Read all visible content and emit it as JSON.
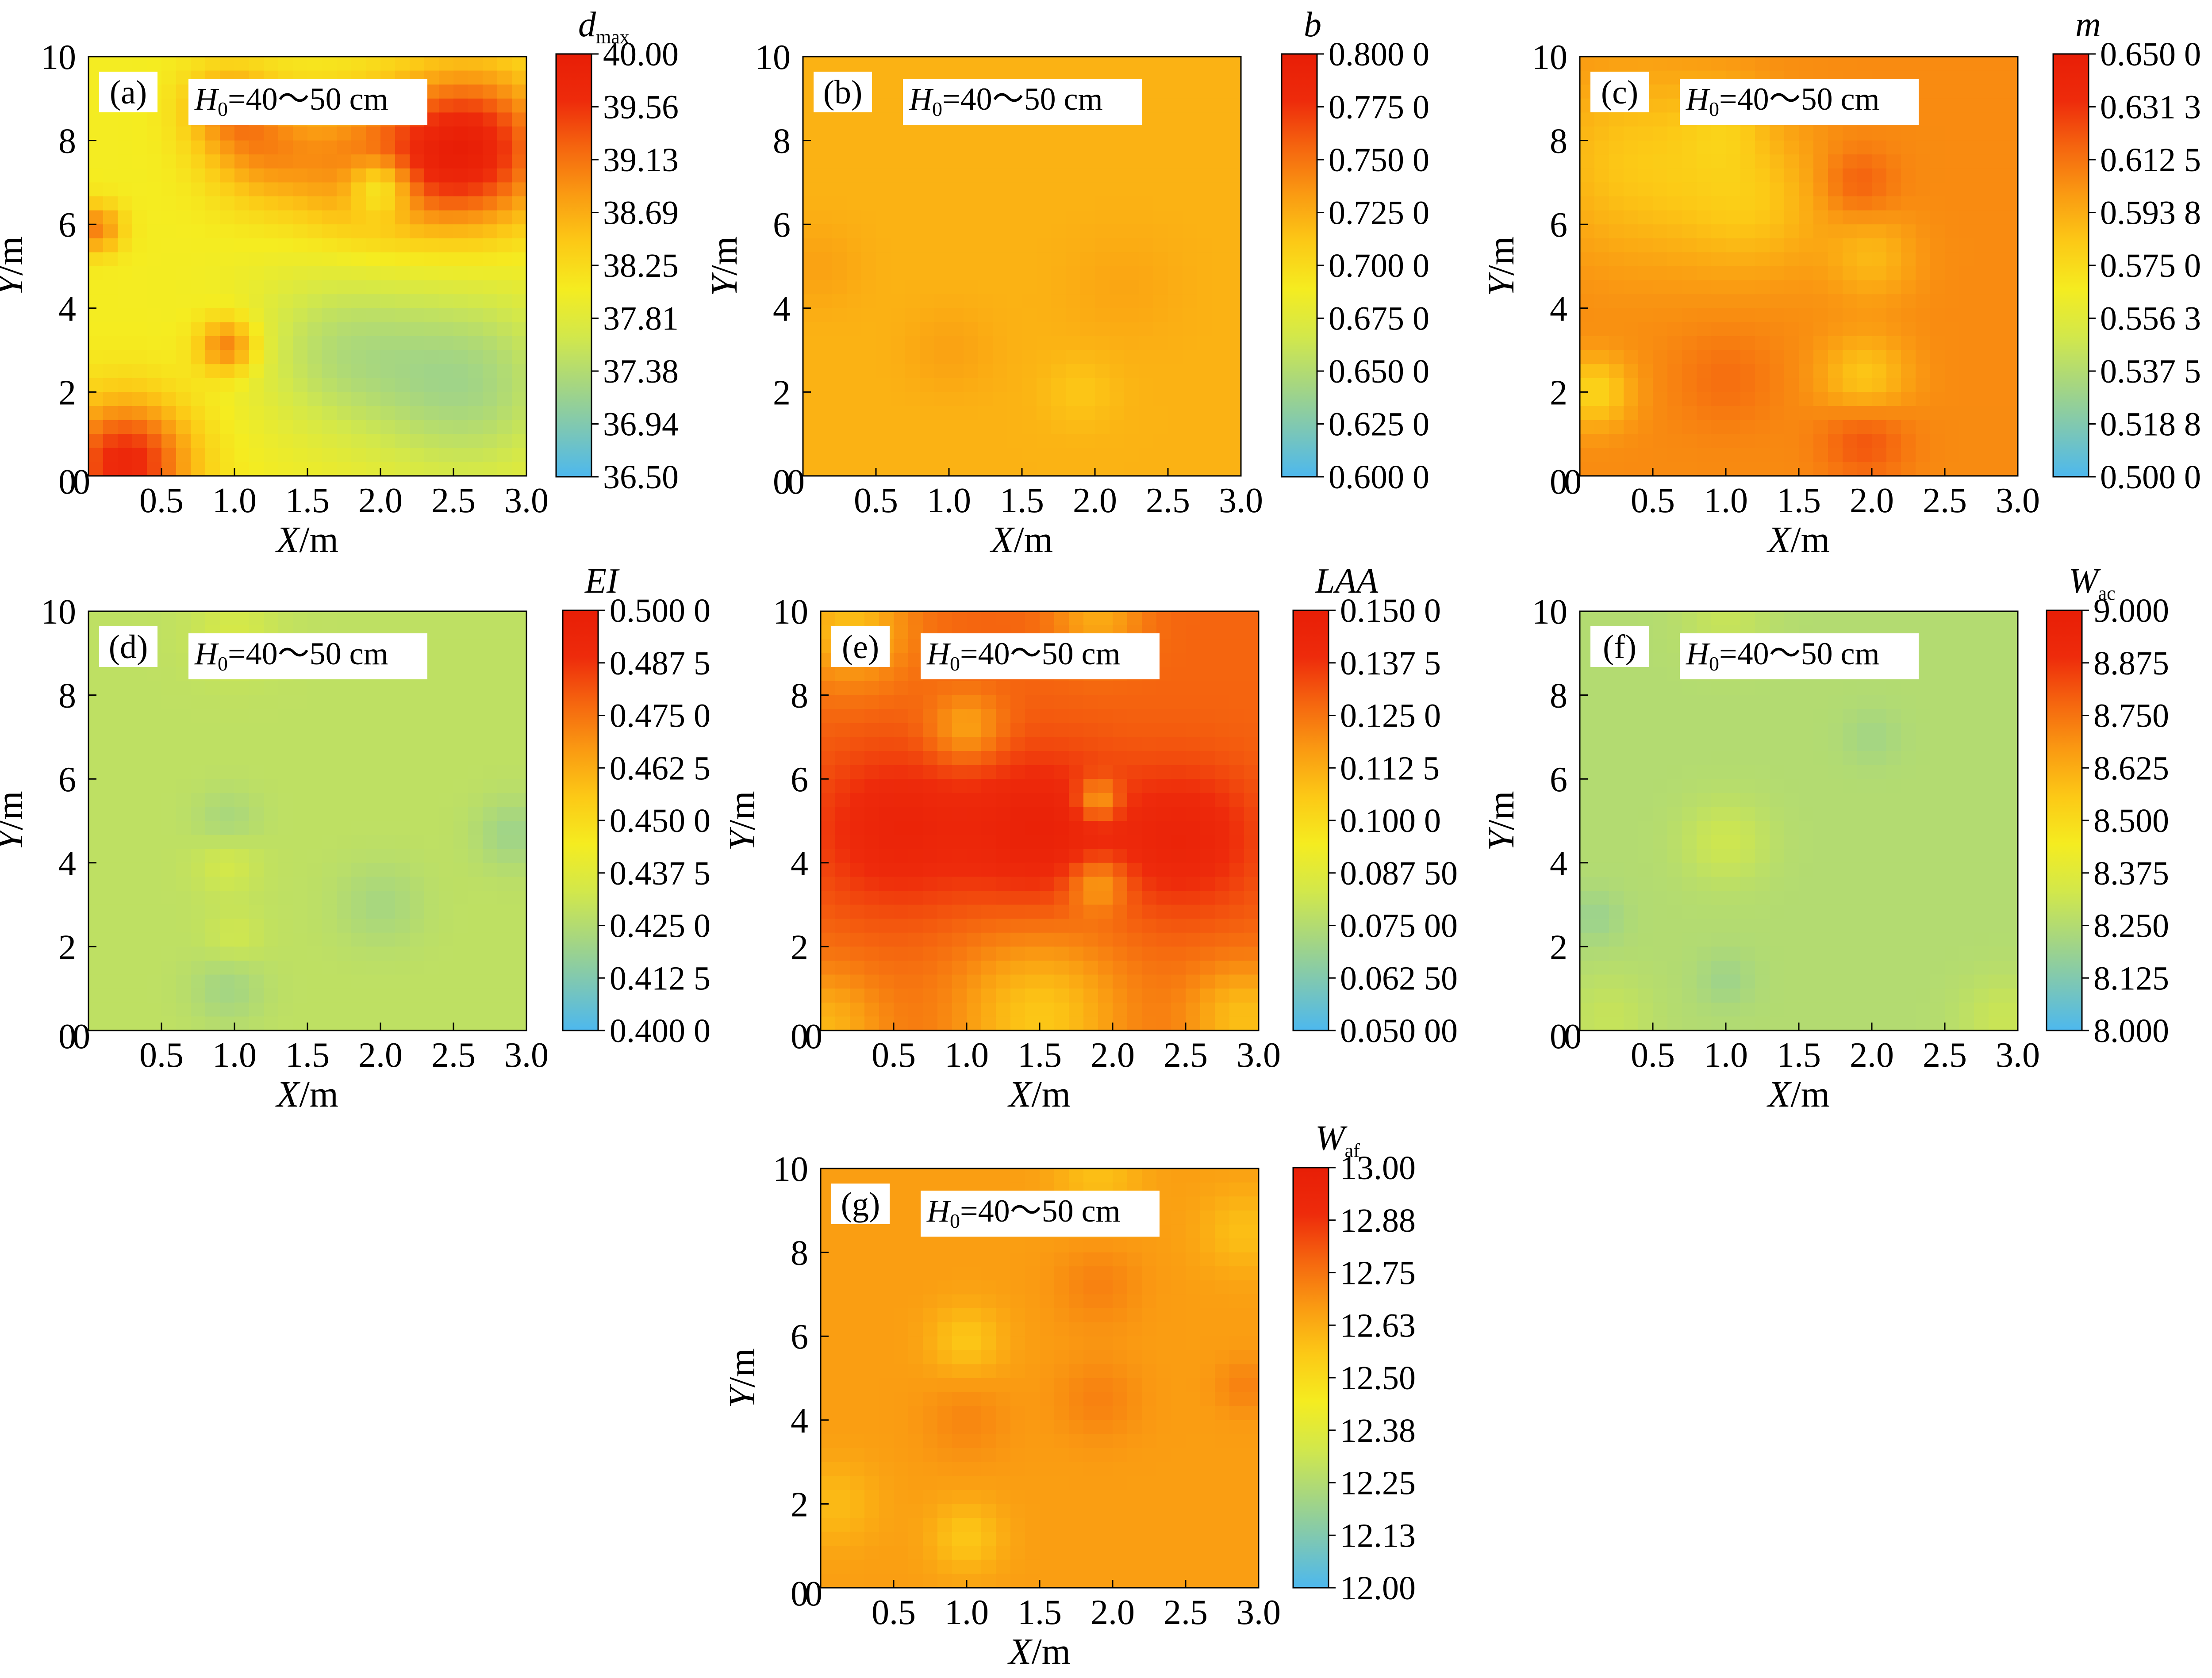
{
  "colors": {
    "scale": [
      "#4db8ee",
      "#7cc7b6",
      "#a8d77e",
      "#d3e84a",
      "#f5ec20",
      "#fcc916",
      "#fa9b12",
      "#f5660f",
      "#ee2b0b",
      "#e81e06"
    ]
  },
  "panels": [
    {
      "label": "(a)",
      "annotation": {
        "italic": "H",
        "sub": "0",
        "rest": "=40～50 cm"
      },
      "xlabel": {
        "italic": "X",
        "rest": "/m"
      },
      "ylabel": {
        "italic": "Y",
        "rest": "/m"
      },
      "xticks": [
        "0.5",
        "1.0",
        "1.5",
        "2.0",
        "2.5",
        "3.0"
      ],
      "yticks": [
        "0",
        "2",
        "4",
        "6",
        "8",
        "10"
      ],
      "colorbar": {
        "title_main": "d",
        "title_sub": "max",
        "title_italic_main": true,
        "ticks": [
          "40.00",
          "39.56",
          "39.13",
          "38.69",
          "38.25",
          "37.81",
          "37.38",
          "36.94",
          "36.50"
        ]
      },
      "base_level": 0.44,
      "blobs": [
        {
          "x": 2.6,
          "y": 7.8,
          "r": 0.55,
          "v": 0.52
        },
        {
          "x": 1.9,
          "y": 7.3,
          "r": 0.5,
          "v": 0.25
        },
        {
          "x": 2.0,
          "y": 6.9,
          "r": 0.22,
          "v": -0.3
        },
        {
          "x": 1.2,
          "y": 7.8,
          "r": 0.4,
          "v": 0.22
        },
        {
          "x": 0.95,
          "y": 8.8,
          "r": 0.3,
          "v": 0.2
        },
        {
          "x": 0.25,
          "y": 0.3,
          "r": 0.45,
          "v": 0.48
        },
        {
          "x": 0.95,
          "y": 3.1,
          "r": 0.2,
          "v": 0.3
        },
        {
          "x": 2.6,
          "y": 2.2,
          "r": 0.7,
          "v": -0.22
        },
        {
          "x": 1.7,
          "y": 3.0,
          "r": 0.6,
          "v": -0.16
        },
        {
          "x": 0.05,
          "y": 5.9,
          "r": 0.18,
          "v": 0.28
        }
      ],
      "view": [
        {
          "x": 0.0,
          "y": 0.0
        }
      ]
    },
    {
      "label": "(b)",
      "annotation": {
        "italic": "H",
        "sub": "0",
        "rest": "=40～50 cm"
      },
      "xlabel": {
        "italic": "X",
        "rest": "/m"
      },
      "ylabel": {
        "italic": "Y",
        "rest": "/m"
      },
      "xticks": [
        "0.5",
        "1.0",
        "1.5",
        "2.0",
        "2.5",
        "3.0"
      ],
      "yticks": [
        "0",
        "2",
        "4",
        "6",
        "8",
        "10"
      ],
      "colorbar": {
        "title_main": "b",
        "title_sub": "",
        "title_italic_main": true,
        "ticks": [
          "0.800 0",
          "0.775 0",
          "0.750 0",
          "0.725 0",
          "0.700 0",
          "0.675 0",
          "0.650 0",
          "0.625 0",
          "0.600 0"
        ]
      },
      "base_level": 0.61,
      "blobs": [
        {
          "x": 1.9,
          "y": 2.0,
          "r": 0.25,
          "v": -0.05
        },
        {
          "x": 1.0,
          "y": 3.0,
          "r": 0.3,
          "v": 0.04
        },
        {
          "x": 0.1,
          "y": 5.0,
          "r": 0.3,
          "v": 0.04
        },
        {
          "x": 2.2,
          "y": 4.5,
          "r": 0.4,
          "v": 0.03
        }
      ]
    },
    {
      "label": "(c)",
      "annotation": {
        "italic": "H",
        "sub": "0",
        "rest": "=40～50 cm"
      },
      "xlabel": {
        "italic": "X",
        "rest": "/m"
      },
      "ylabel": {
        "italic": "Y",
        "rest": "/m"
      },
      "xticks": [
        "0.5",
        "1.0",
        "1.5",
        "2.0",
        "2.5",
        "3.0"
      ],
      "yticks": [
        "0",
        "2",
        "4",
        "6",
        "8",
        "10"
      ],
      "colorbar": {
        "title_main": "m",
        "title_sub": "",
        "title_italic_main": true,
        "ticks": [
          "0.650 0",
          "0.631 3",
          "0.612 5",
          "0.593 8",
          "0.575 0",
          "0.556 3",
          "0.537 5",
          "0.518 8",
          "0.500 0"
        ]
      },
      "base_level": 0.7,
      "blobs": [
        {
          "x": 0.4,
          "y": 7.5,
          "r": 0.7,
          "v": -0.14
        },
        {
          "x": 1.2,
          "y": 6.5,
          "r": 0.5,
          "v": -0.12
        },
        {
          "x": 0.1,
          "y": 2.0,
          "r": 0.25,
          "v": -0.18
        },
        {
          "x": 1.95,
          "y": 2.3,
          "r": 0.3,
          "v": -0.15
        },
        {
          "x": 2.0,
          "y": 5.2,
          "r": 0.3,
          "v": -0.1
        },
        {
          "x": 1.95,
          "y": 0.9,
          "r": 0.3,
          "v": 0.12
        },
        {
          "x": 1.0,
          "y": 2.3,
          "r": 0.35,
          "v": 0.06
        },
        {
          "x": 1.9,
          "y": 7.0,
          "r": 0.25,
          "v": 0.1
        },
        {
          "x": 1.0,
          "y": 8.4,
          "r": 0.3,
          "v": -0.08
        }
      ]
    },
    {
      "label": "(d)",
      "annotation": {
        "italic": "H",
        "sub": "0",
        "rest": "=40～50 cm"
      },
      "xlabel": {
        "italic": "X",
        "rest": "/m"
      },
      "ylabel": {
        "italic": "Y",
        "rest": "/m"
      },
      "xticks": [
        "0.5",
        "1.0",
        "1.5",
        "2.0",
        "2.5",
        "3.0"
      ],
      "yticks": [
        "0",
        "2",
        "4",
        "6",
        "8",
        "10"
      ],
      "colorbar": {
        "title_main": "EI",
        "title_sub": "",
        "title_italic_main": true,
        "ticks": [
          "0.500 0",
          "0.487 5",
          "0.475 0",
          "0.462 5",
          "0.450 0",
          "0.437 5",
          "0.425 0",
          "0.412 5",
          "0.400 0"
        ]
      },
      "base_level": 0.28,
      "blobs": [
        {
          "x": 0.95,
          "y": 1.0,
          "r": 0.25,
          "v": -0.07
        },
        {
          "x": 0.95,
          "y": 4.0,
          "r": 0.22,
          "v": 0.06
        },
        {
          "x": 0.95,
          "y": 5.0,
          "r": 0.22,
          "v": -0.06
        },
        {
          "x": 2.9,
          "y": 4.7,
          "r": 0.25,
          "v": -0.08
        },
        {
          "x": 2.0,
          "y": 3.0,
          "r": 0.3,
          "v": -0.06
        },
        {
          "x": 1.0,
          "y": 9.5,
          "r": 0.3,
          "v": 0.06
        },
        {
          "x": 1.0,
          "y": 2.2,
          "r": 0.2,
          "v": 0.05
        }
      ]
    },
    {
      "label": "(e)",
      "annotation": {
        "italic": "H",
        "sub": "0",
        "rest": "=40～50 cm"
      },
      "xlabel": {
        "italic": "X",
        "rest": "/m"
      },
      "ylabel": {
        "italic": "Y",
        "rest": "/m"
      },
      "xticks": [
        "0.5",
        "1.0",
        "1.5",
        "2.0",
        "2.5",
        "3.0"
      ],
      "yticks": [
        "0",
        "2",
        "4",
        "6",
        "8",
        "10"
      ],
      "colorbar": {
        "title_main": "LAA",
        "title_sub": "",
        "title_italic_main": true,
        "ticks": [
          "0.150 0",
          "0.137 5",
          "0.125 0",
          "0.112 5",
          "0.100 0",
          "0.087 50",
          "0.075 00",
          "0.062 50",
          "0.050 00"
        ]
      },
      "base_level": 0.78,
      "blobs": [
        {
          "x": 0.5,
          "y": 4.8,
          "r": 0.55,
          "v": 0.16
        },
        {
          "x": 1.5,
          "y": 4.8,
          "r": 0.55,
          "v": 0.18
        },
        {
          "x": 2.5,
          "y": 4.6,
          "r": 0.5,
          "v": 0.16
        },
        {
          "x": 0.0,
          "y": 0.0,
          "r": 0.45,
          "v": -0.18
        },
        {
          "x": 1.5,
          "y": 0.3,
          "r": 0.6,
          "v": -0.22
        },
        {
          "x": 2.9,
          "y": 0.3,
          "r": 0.4,
          "v": -0.2
        },
        {
          "x": 0.2,
          "y": 9.6,
          "r": 0.4,
          "v": -0.2
        },
        {
          "x": 1.9,
          "y": 9.8,
          "r": 0.3,
          "v": -0.15
        },
        {
          "x": 1.9,
          "y": 5.5,
          "r": 0.15,
          "v": -0.22
        },
        {
          "x": 1.9,
          "y": 3.5,
          "r": 0.2,
          "v": -0.18
        },
        {
          "x": 1.0,
          "y": 7.2,
          "r": 0.25,
          "v": -0.15
        }
      ]
    },
    {
      "label": "(f)",
      "annotation": {
        "italic": "H",
        "sub": "0",
        "rest": "=40～50 cm"
      },
      "xlabel": {
        "italic": "X",
        "rest": "/m"
      },
      "ylabel": {
        "italic": "Y",
        "rest": "/m"
      },
      "xticks": [
        "0.5",
        "1.0",
        "1.5",
        "2.0",
        "2.5",
        "3.0"
      ],
      "yticks": [
        "0",
        "2",
        "4",
        "6",
        "8",
        "10"
      ],
      "colorbar": {
        "title_main": "W",
        "title_sub": "ac",
        "title_italic_main": true,
        "ticks": [
          "9.000",
          "8.875",
          "8.750",
          "8.625",
          "8.500",
          "8.375",
          "8.250",
          "8.125",
          "8.000"
        ]
      },
      "base_level": 0.25,
      "blobs": [
        {
          "x": 1.0,
          "y": 4.5,
          "r": 0.3,
          "v": 0.07
        },
        {
          "x": 0.1,
          "y": 2.7,
          "r": 0.2,
          "v": -0.06
        },
        {
          "x": 1.0,
          "y": 1.2,
          "r": 0.2,
          "v": -0.05
        },
        {
          "x": 2.0,
          "y": 7.0,
          "r": 0.2,
          "v": -0.04
        },
        {
          "x": 0.2,
          "y": 0.3,
          "r": 0.3,
          "v": 0.05
        },
        {
          "x": 2.9,
          "y": 0.3,
          "r": 0.3,
          "v": 0.06
        },
        {
          "x": 1.0,
          "y": 9.8,
          "r": 0.3,
          "v": 0.05
        }
      ]
    },
    {
      "label": "(g)",
      "annotation": {
        "italic": "H",
        "sub": "0",
        "rest": "=40～50 cm"
      },
      "xlabel": {
        "italic": "X",
        "rest": "/m"
      },
      "ylabel": {
        "italic": "Y",
        "rest": "/m"
      },
      "xticks": [
        "0.5",
        "1.0",
        "1.5",
        "2.0",
        "2.5",
        "3.0"
      ],
      "yticks": [
        "0",
        "2",
        "4",
        "6",
        "8",
        "10"
      ],
      "colorbar": {
        "title_main": "W",
        "title_sub": "af",
        "title_italic_main": true,
        "ticks": [
          "13.00",
          "12.88",
          "12.75",
          "12.63",
          "12.50",
          "12.38",
          "12.25",
          "12.13",
          "12.00"
        ]
      },
      "base_level": 0.66,
      "blobs": [
        {
          "x": 1.0,
          "y": 5.9,
          "r": 0.25,
          "v": -0.1
        },
        {
          "x": 1.0,
          "y": 1.2,
          "r": 0.25,
          "v": -0.1
        },
        {
          "x": 0.1,
          "y": 2.0,
          "r": 0.3,
          "v": -0.07
        },
        {
          "x": 2.9,
          "y": 8.5,
          "r": 0.3,
          "v": -0.08
        },
        {
          "x": 1.9,
          "y": 7.2,
          "r": 0.3,
          "v": 0.06
        },
        {
          "x": 1.9,
          "y": 4.5,
          "r": 0.3,
          "v": 0.06
        },
        {
          "x": 1.0,
          "y": 4.0,
          "r": 0.3,
          "v": 0.05
        },
        {
          "x": 2.9,
          "y": 4.8,
          "r": 0.2,
          "v": 0.06
        },
        {
          "x": 1.9,
          "y": 9.8,
          "r": 0.3,
          "v": -0.08
        }
      ]
    }
  ]
}
